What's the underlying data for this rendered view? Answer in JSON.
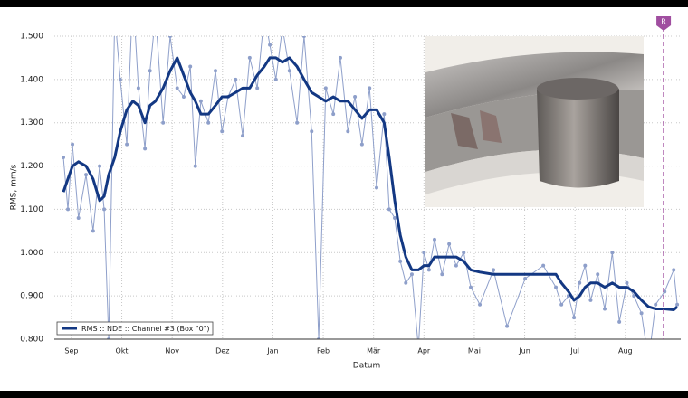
{
  "chart_data": {
    "type": "line",
    "y_label": "RMS, mm/s",
    "x_label": "Datum",
    "x": [
      -0.16,
      -0.07,
      0.02,
      0.14,
      0.29,
      0.43,
      0.56,
      0.65,
      0.74,
      0.86,
      0.97,
      1.1,
      1.22,
      1.33,
      1.46,
      1.56,
      1.67,
      1.82,
      1.96,
      2.1,
      2.23,
      2.36,
      2.46,
      2.57,
      2.72,
      2.86,
      2.99,
      3.11,
      3.26,
      3.4,
      3.54,
      3.69,
      3.83,
      3.94,
      4.06,
      4.19,
      4.33,
      4.48,
      4.62,
      4.77,
      4.91,
      5.05,
      5.2,
      5.34,
      5.49,
      5.63,
      5.77,
      5.92,
      6.06,
      6.21,
      6.31,
      6.42,
      6.53,
      6.64,
      6.76,
      6.89,
      7.0,
      7.1,
      7.21,
      7.36,
      7.5,
      7.64,
      7.79,
      7.93,
      8.11,
      8.38,
      8.65,
      9.01,
      9.37,
      9.62,
      9.73,
      9.87,
      9.98,
      10.09,
      10.2,
      10.31,
      10.45,
      10.59,
      10.74,
      10.88,
      11.03,
      11.17,
      11.32,
      11.46,
      11.6,
      11.78,
      11.96,
      12.03
    ],
    "series": [
      {
        "color": "#8e9fca",
        "markers": true,
        "values": [
          1.22,
          1.1,
          1.25,
          1.08,
          1.18,
          1.05,
          1.2,
          1.1,
          0.8,
          1.55,
          1.4,
          1.25,
          1.6,
          1.38,
          1.24,
          1.42,
          1.55,
          1.3,
          1.5,
          1.38,
          1.36,
          1.43,
          1.2,
          1.35,
          1.3,
          1.42,
          1.28,
          1.36,
          1.4,
          1.27,
          1.45,
          1.38,
          1.55,
          1.48,
          1.4,
          1.52,
          1.42,
          1.3,
          1.5,
          1.28,
          0.8,
          1.38,
          1.32,
          1.45,
          1.28,
          1.36,
          1.25,
          1.38,
          1.15,
          1.32,
          1.1,
          1.08,
          0.98,
          0.93,
          0.95,
          0.78,
          1.0,
          0.96,
          1.03,
          0.95,
          1.02,
          0.97,
          1.0,
          0.92,
          0.88,
          0.96,
          0.83,
          0.94,
          0.97,
          0.92,
          0.88,
          0.9,
          0.85,
          0.93,
          0.97,
          0.89,
          0.95,
          0.87,
          1.0,
          0.84,
          0.93,
          0.9,
          0.86,
          0.75,
          0.88,
          0.91,
          0.96,
          0.88
        ]
      },
      {
        "name": "RMS :: NDE :: Channel #3 (Box \"0\")",
        "color": "#133883",
        "markers": false,
        "values": [
          1.14,
          1.17,
          1.2,
          1.21,
          1.2,
          1.17,
          1.12,
          1.13,
          1.18,
          1.22,
          1.28,
          1.33,
          1.35,
          1.34,
          1.3,
          1.34,
          1.35,
          1.38,
          1.42,
          1.45,
          1.41,
          1.37,
          1.35,
          1.32,
          1.32,
          1.34,
          1.36,
          1.36,
          1.37,
          1.38,
          1.38,
          1.41,
          1.43,
          1.45,
          1.45,
          1.44,
          1.45,
          1.43,
          1.4,
          1.37,
          1.36,
          1.35,
          1.36,
          1.35,
          1.35,
          1.33,
          1.31,
          1.33,
          1.33,
          1.3,
          1.22,
          1.12,
          1.04,
          0.99,
          0.96,
          0.96,
          0.97,
          0.97,
          0.99,
          0.99,
          0.99,
          0.99,
          0.98,
          0.96,
          0.955,
          0.95,
          0.95,
          0.95,
          0.95,
          0.95,
          0.93,
          0.91,
          0.89,
          0.9,
          0.92,
          0.93,
          0.93,
          0.92,
          0.93,
          0.92,
          0.92,
          0.91,
          0.89,
          0.875,
          0.87,
          0.87,
          0.868,
          0.875
        ]
      }
    ],
    "xlim": [
      -0.34,
      12.1
    ],
    "xticks": [
      {
        "value": 0,
        "label": "Sep"
      },
      {
        "value": 1,
        "label": "Okt"
      },
      {
        "value": 2,
        "label": "Nov"
      },
      {
        "value": 3,
        "label": "Dez"
      },
      {
        "value": 4,
        "label": "Jan"
      },
      {
        "value": 5,
        "label": "Feb"
      },
      {
        "value": 6,
        "label": "Mär"
      },
      {
        "value": 7,
        "label": "Apr"
      },
      {
        "value": 8,
        "label": "Mai"
      },
      {
        "value": 9,
        "label": "Jun"
      },
      {
        "value": 10,
        "label": "Jul"
      },
      {
        "value": 11,
        "label": "Aug"
      }
    ],
    "ylim": [
      0.8,
      1.5
    ],
    "yticks": [
      {
        "value": 0.8,
        "label": "0.800"
      },
      {
        "value": 0.9,
        "label": "0.900"
      },
      {
        "value": 1.0,
        "label": "1.000"
      },
      {
        "value": 1.1,
        "label": "1.100"
      },
      {
        "value": 1.2,
        "label": "1.200"
      },
      {
        "value": 1.3,
        "label": "1.300"
      },
      {
        "value": 1.4,
        "label": "1.400"
      },
      {
        "value": 1.5,
        "label": "1.500"
      }
    ],
    "grid": true,
    "legend": "lower left",
    "markers_v": [
      {
        "label": "R",
        "x": 11.76,
        "color": "#a04ea0"
      }
    ]
  }
}
